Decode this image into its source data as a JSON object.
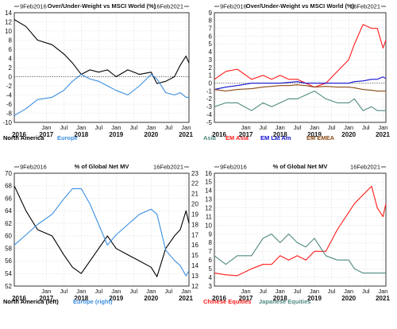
{
  "chart_data": [
    {
      "type": "line",
      "title": "Over/Under-Weight vs MSCI World (%)",
      "start_label": "9Feb2016",
      "end_label": "16Feb2021",
      "ylim": [
        -10,
        14
      ],
      "yticks": [
        -10,
        -8,
        -6,
        -4,
        -2,
        0,
        2,
        4,
        6,
        8,
        10,
        12,
        14
      ],
      "reference_line": 0,
      "grid": true,
      "legend_position": "bottom-left",
      "series": [
        {
          "name": "North America",
          "color": "#000000",
          "x": [
            "2016-02",
            "2016-06",
            "2016-10",
            "2017-03",
            "2017-07",
            "2017-10",
            "2018-01",
            "2018-04",
            "2018-07",
            "2018-10",
            "2019-01",
            "2019-05",
            "2019-09",
            "2020-01",
            "2020-03",
            "2020-06",
            "2020-09",
            "2020-11",
            "2021-01",
            "2021-02"
          ],
          "values": [
            12.5,
            11,
            8,
            7,
            5,
            3,
            0.5,
            1.5,
            1,
            1.5,
            0,
            1.5,
            0.5,
            1,
            -1.5,
            -1,
            0,
            2.5,
            4.5,
            3
          ]
        },
        {
          "name": "Europe",
          "color": "#3a8ee0",
          "x": [
            "2016-02",
            "2016-06",
            "2016-10",
            "2017-03",
            "2017-07",
            "2017-10",
            "2018-01",
            "2018-04",
            "2018-07",
            "2018-10",
            "2019-01",
            "2019-05",
            "2019-09",
            "2020-01",
            "2020-03",
            "2020-06",
            "2020-09",
            "2020-11",
            "2021-01",
            "2021-02"
          ],
          "values": [
            -8.5,
            -7,
            -5,
            -4.5,
            -3,
            -1,
            0.5,
            -0.5,
            -1,
            -2,
            -3,
            -4,
            -2,
            0.5,
            -0.5,
            -3.5,
            -4,
            -3.5,
            -4.5,
            -4.5
          ]
        }
      ]
    },
    {
      "type": "line",
      "title": "Over/Under-Weight vs MSCI World (%)",
      "start_label": "9Feb2016",
      "end_label": "16Feb2021",
      "ylim": [
        -5,
        9
      ],
      "yticks": [
        -5,
        -4,
        -3,
        -2,
        -1,
        0,
        1,
        2,
        3,
        4,
        5,
        6,
        7,
        8,
        9
      ],
      "reference_line": 0,
      "grid": true,
      "legend_position": "bottom-left",
      "series": [
        {
          "name": "Asia",
          "color": "#4f8a80",
          "x": [
            "2016-02",
            "2016-06",
            "2016-10",
            "2017-03",
            "2017-07",
            "2017-10",
            "2018-01",
            "2018-04",
            "2018-07",
            "2018-10",
            "2019-01",
            "2019-05",
            "2019-09",
            "2020-01",
            "2020-03",
            "2020-06",
            "2020-09",
            "2020-11",
            "2021-01",
            "2021-02"
          ],
          "values": [
            -3,
            -2.5,
            -2.5,
            -3.5,
            -2.5,
            -3,
            -2.5,
            -2,
            -2,
            -1.5,
            -1,
            -2,
            -2.5,
            -2.5,
            -2,
            -3.5,
            -3,
            -3.5,
            -3.5,
            -3.5
          ]
        },
        {
          "name": "EM Asia",
          "color": "#ff1a1a",
          "x": [
            "2016-02",
            "2016-06",
            "2016-10",
            "2017-03",
            "2017-07",
            "2017-10",
            "2018-01",
            "2018-04",
            "2018-07",
            "2018-10",
            "2019-01",
            "2019-05",
            "2019-09",
            "2020-01",
            "2020-03",
            "2020-06",
            "2020-09",
            "2020-11",
            "2021-01",
            "2021-02"
          ],
          "values": [
            0.5,
            1.5,
            1.8,
            0.5,
            1,
            0.5,
            1,
            0.5,
            0.5,
            0,
            -0.5,
            0,
            1.5,
            3,
            5,
            7.5,
            7,
            7,
            4.5,
            5.5
          ]
        },
        {
          "name": "EM Lat Am",
          "color": "#1010d0",
          "x": [
            "2016-02",
            "2016-06",
            "2016-10",
            "2017-03",
            "2017-07",
            "2017-10",
            "2018-01",
            "2018-04",
            "2018-07",
            "2018-10",
            "2019-01",
            "2019-05",
            "2019-09",
            "2020-01",
            "2020-03",
            "2020-06",
            "2020-09",
            "2020-11",
            "2021-01",
            "2021-02"
          ],
          "values": [
            -0.8,
            -0.5,
            -0.3,
            0,
            0,
            0,
            0,
            0.1,
            0.2,
            0,
            0,
            0,
            0,
            0,
            0.2,
            0.3,
            0.5,
            0.5,
            0.8,
            0.6
          ]
        },
        {
          "name": "EM EMEA",
          "color": "#8b4a15",
          "x": [
            "2016-02",
            "2016-06",
            "2016-10",
            "2017-03",
            "2017-07",
            "2017-10",
            "2018-01",
            "2018-04",
            "2018-07",
            "2018-10",
            "2019-01",
            "2019-05",
            "2019-09",
            "2020-01",
            "2020-03",
            "2020-06",
            "2020-09",
            "2020-11",
            "2021-01",
            "2021-02"
          ],
          "values": [
            -0.8,
            -1,
            -0.8,
            -0.7,
            -0.5,
            -0.4,
            -0.3,
            -0.3,
            -0.2,
            -0.3,
            -0.5,
            -0.4,
            -0.5,
            -0.5,
            -0.6,
            -0.8,
            -0.9,
            -1,
            -1,
            -1
          ]
        }
      ]
    },
    {
      "type": "line",
      "title": "% of Global Net MV",
      "start_label": "9Feb2016",
      "end_label": "16Feb2021",
      "ylim": [
        52,
        70
      ],
      "yticks": [
        52,
        54,
        56,
        58,
        60,
        62,
        64,
        66,
        68,
        70
      ],
      "y2lim": [
        12,
        23
      ],
      "y2ticks": [
        12,
        13,
        14,
        15,
        16,
        17,
        18,
        19,
        20,
        21,
        22,
        23
      ],
      "grid": true,
      "legend_position": "bottom-left",
      "series": [
        {
          "name": "North America (left)",
          "color": "#000000",
          "axis": "left",
          "x": [
            "2016-02",
            "2016-06",
            "2016-10",
            "2017-03",
            "2017-07",
            "2017-10",
            "2018-01",
            "2018-04",
            "2018-07",
            "2018-10",
            "2019-01",
            "2019-05",
            "2019-09",
            "2020-01",
            "2020-03",
            "2020-06",
            "2020-09",
            "2020-11",
            "2021-01",
            "2021-02"
          ],
          "values": [
            68,
            64,
            61,
            60,
            57,
            55,
            54,
            56,
            58,
            60,
            58,
            57,
            56,
            55,
            53.5,
            58,
            60,
            61,
            64,
            62
          ]
        },
        {
          "name": "Europe (right)",
          "color": "#3a8ee0",
          "axis": "right",
          "x": [
            "2016-02",
            "2016-06",
            "2016-10",
            "2017-03",
            "2017-07",
            "2017-10",
            "2018-01",
            "2018-04",
            "2018-07",
            "2018-10",
            "2019-01",
            "2019-05",
            "2019-09",
            "2020-01",
            "2020-03",
            "2020-06",
            "2020-09",
            "2020-11",
            "2021-01",
            "2021-02"
          ],
          "values": [
            16,
            17,
            18,
            19,
            20.5,
            21.5,
            21.5,
            20,
            18,
            16,
            17,
            18,
            19,
            19.5,
            19,
            15.5,
            14.5,
            14,
            13,
            13.5
          ]
        }
      ]
    },
    {
      "type": "line",
      "title": "% of Global Net MV",
      "start_label": "9Feb2016",
      "end_label": "16Feb2021",
      "ylim": [
        3,
        16
      ],
      "yticks": [
        3,
        4,
        5,
        6,
        7,
        8,
        9,
        10,
        11,
        12,
        13,
        14,
        15,
        16
      ],
      "grid": true,
      "legend_position": "bottom-left",
      "series": [
        {
          "name": "Chinese Equities",
          "color": "#ff1a1a",
          "x": [
            "2016-02",
            "2016-06",
            "2016-10",
            "2017-03",
            "2017-07",
            "2017-10",
            "2018-01",
            "2018-04",
            "2018-07",
            "2018-10",
            "2019-01",
            "2019-05",
            "2019-09",
            "2020-01",
            "2020-03",
            "2020-06",
            "2020-09",
            "2020-11",
            "2021-01",
            "2021-02"
          ],
          "values": [
            4.5,
            4.3,
            4.2,
            5,
            5.5,
            5.5,
            6.5,
            6,
            6.5,
            6,
            7,
            7,
            9.5,
            11.5,
            12.5,
            13.5,
            14.5,
            12,
            11,
            12.5
          ]
        },
        {
          "name": "Japanese Equities",
          "color": "#4f8a80",
          "x": [
            "2016-02",
            "2016-06",
            "2016-10",
            "2017-03",
            "2017-07",
            "2017-10",
            "2018-01",
            "2018-04",
            "2018-07",
            "2018-10",
            "2019-01",
            "2019-05",
            "2019-09",
            "2020-01",
            "2020-03",
            "2020-06",
            "2020-09",
            "2020-11",
            "2021-01",
            "2021-02"
          ],
          "values": [
            6.5,
            5.5,
            6.5,
            6.5,
            8.5,
            9,
            8,
            9,
            8,
            7.5,
            8.5,
            6.5,
            6,
            6,
            5,
            4.5,
            4.5,
            4.5,
            4.5,
            4.5
          ]
        }
      ]
    }
  ],
  "xaxis": {
    "year_labels": [
      "2016",
      "2017",
      "2018",
      "2019",
      "2020",
      "2021"
    ],
    "ticks": [
      {
        "label": "Jan",
        "date": "2017-01"
      },
      {
        "label": "Jul",
        "date": "2017-07"
      },
      {
        "label": "Jan",
        "date": "2018-01"
      },
      {
        "label": "Jul",
        "date": "2018-07"
      },
      {
        "label": "Jan",
        "date": "2019-01"
      },
      {
        "label": "Jul",
        "date": "2019-07"
      },
      {
        "label": "Jan",
        "date": "2020-01"
      },
      {
        "label": "Jul",
        "date": "2020-07"
      },
      {
        "label": "Jan",
        "date": "2021-01"
      }
    ],
    "start": "2016-02",
    "end": "2021-02"
  }
}
